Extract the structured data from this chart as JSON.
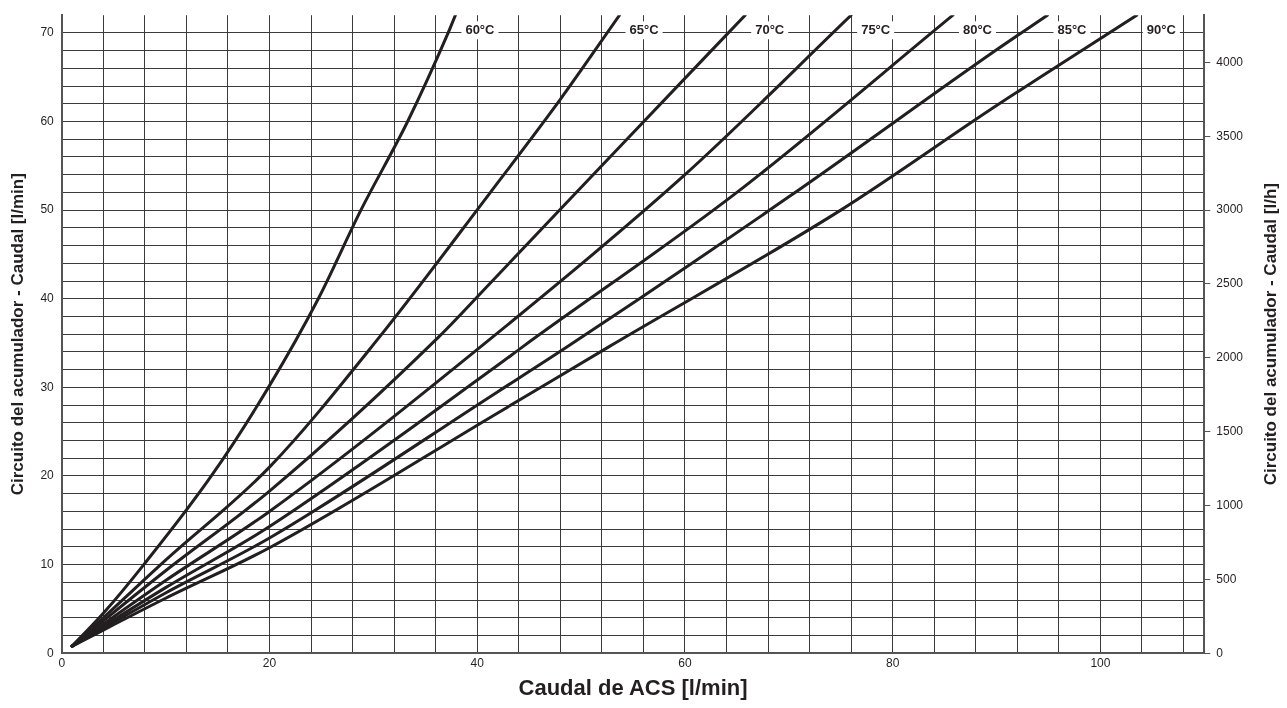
{
  "chart_data": {
    "type": "line",
    "xlabel": "Caudal de ACS [l/min]",
    "ylabel": "Circuito del acumulador - Caudal [l/min]",
    "y2label": "Circuito del acumulador - Caudal [l/h]",
    "xlim": [
      0,
      110
    ],
    "xticks": [
      0,
      {
        "value": 4,
        "label": null
      },
      {
        "value": 8,
        "label": null
      },
      {
        "value": 12,
        "label": null
      },
      {
        "value": 16,
        "label": null
      },
      20,
      {
        "value": 24,
        "label": null
      },
      {
        "value": 28,
        "label": null
      },
      {
        "value": 32,
        "label": null
      },
      {
        "value": 36,
        "label": null
      },
      40,
      {
        "value": 44,
        "label": null
      },
      {
        "value": 48,
        "label": null
      },
      {
        "value": 52,
        "label": null
      },
      {
        "value": 56,
        "label": null
      },
      60,
      {
        "value": 64,
        "label": null
      },
      {
        "value": 68,
        "label": null
      },
      {
        "value": 72,
        "label": null
      },
      {
        "value": 76,
        "label": null
      },
      80,
      {
        "value": 84,
        "label": null
      },
      {
        "value": 88,
        "label": null
      },
      {
        "value": 92,
        "label": null
      },
      {
        "value": 96,
        "label": null
      },
      100,
      {
        "value": 104,
        "label": null
      },
      {
        "value": 108,
        "label": null
      }
    ],
    "ylim": [
      0,
      72
    ],
    "yticks": [
      0,
      {
        "value": 2,
        "label": null
      },
      {
        "value": 4,
        "label": null
      },
      {
        "value": 6,
        "label": null
      },
      {
        "value": 8,
        "label": null
      },
      10,
      {
        "value": 12,
        "label": null
      },
      {
        "value": 14,
        "label": null
      },
      {
        "value": 16,
        "label": null
      },
      {
        "value": 18,
        "label": null
      },
      20,
      {
        "value": 22,
        "label": null
      },
      {
        "value": 24,
        "label": null
      },
      {
        "value": 26,
        "label": null
      },
      {
        "value": 28,
        "label": null
      },
      30,
      {
        "value": 32,
        "label": null
      },
      {
        "value": 34,
        "label": null
      },
      {
        "value": 36,
        "label": null
      },
      {
        "value": 38,
        "label": null
      },
      40,
      {
        "value": 42,
        "label": null
      },
      {
        "value": 44,
        "label": null
      },
      {
        "value": 46,
        "label": null
      },
      {
        "value": 48,
        "label": null
      },
      50,
      {
        "value": 52,
        "label": null
      },
      {
        "value": 54,
        "label": null
      },
      {
        "value": 56,
        "label": null
      },
      {
        "value": 58,
        "label": null
      },
      60,
      {
        "value": 62,
        "label": null
      },
      {
        "value": 64,
        "label": null
      },
      {
        "value": 66,
        "label": null
      },
      {
        "value": 68,
        "label": null
      },
      70
    ],
    "y2lim": [
      0,
      4320
    ],
    "y2ticks": [
      0,
      500,
      1000,
      1500,
      2000,
      2500,
      3000,
      3500,
      4000
    ],
    "grid": true,
    "legend": false,
    "marker": "none",
    "line_style": "solid",
    "series": [
      {
        "name": "60°C",
        "color": "#231f20",
        "x": [
          1,
          4,
          7.9,
          14.4,
          19.9,
          24.7,
          28.8,
          33.3,
          37.2,
          37.9
        ],
        "values": [
          0.8,
          4.5,
          10,
          20,
          30,
          40,
          50,
          60,
          70,
          72
        ]
      },
      {
        "name": "65°C",
        "color": "#231f20",
        "x": [
          1,
          4,
          10,
          20,
          30.6,
          41.2,
          48,
          53.7
        ],
        "values": [
          0.8,
          4,
          10.5,
          21,
          35.7,
          51.9,
          62.5,
          72
        ]
      },
      {
        "name": "70°C",
        "color": "#231f20",
        "x": [
          1,
          10,
          20,
          36.3,
          41.2,
          54,
          65.8
        ],
        "values": [
          0.8,
          9.3,
          18.3,
          35.7,
          41.7,
          57.5,
          72
        ]
      },
      {
        "name": "75°C",
        "color": "#231f20",
        "x": [
          1,
          10,
          20,
          41.5,
          60,
          76
        ],
        "values": [
          0.8,
          8.2,
          16,
          35.7,
          54,
          72
        ]
      },
      {
        "name": "80°C",
        "color": "#231f20",
        "x": [
          1,
          10,
          20,
          42.1,
          44.4,
          65,
          85.8
        ],
        "values": [
          0.8,
          7.4,
          14.3,
          32.6,
          34.6,
          52,
          72
        ]
      },
      {
        "name": "85°C",
        "color": "#231f20",
        "x": [
          1,
          10,
          20,
          42.1,
          48.7,
          70,
          90,
          94.9
        ],
        "values": [
          0.8,
          6.8,
          13,
          29.6,
          34.6,
          51.5,
          68.1,
          72
        ]
      },
      {
        "name": "90°C",
        "color": "#231f20",
        "x": [
          1,
          10,
          20,
          42.1,
          52.7,
          75,
          90,
          103.5
        ],
        "values": [
          0.8,
          6.2,
          11.9,
          27.2,
          34.6,
          50,
          61.8,
          72
        ]
      }
    ]
  }
}
